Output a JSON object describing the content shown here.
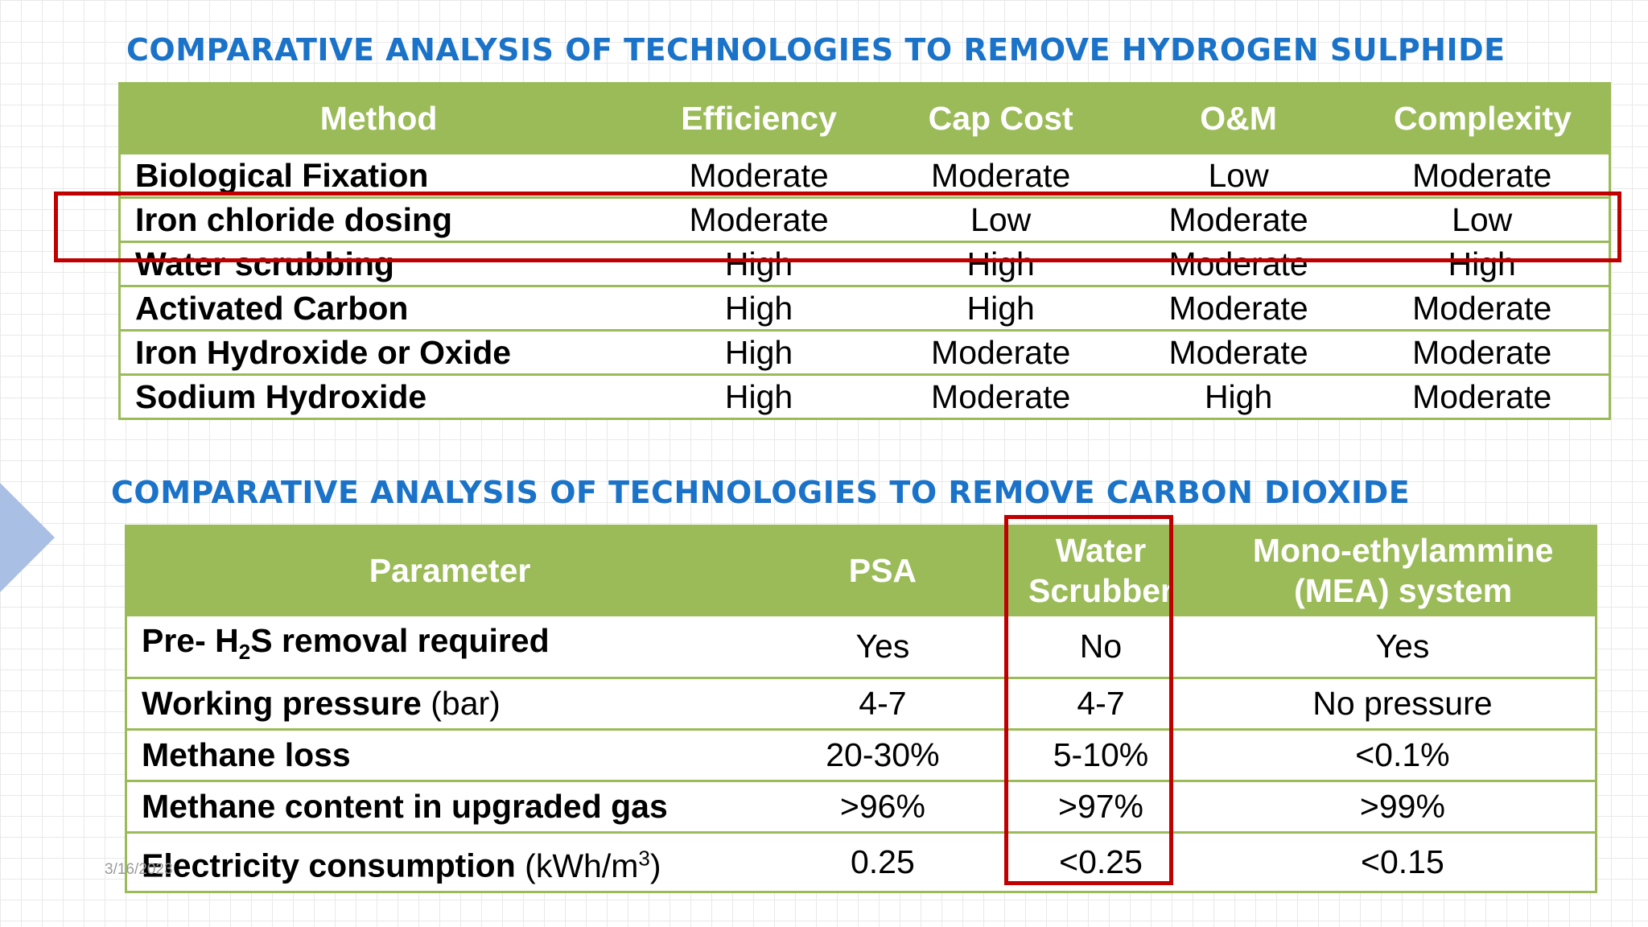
{
  "h2s": {
    "title": "COMPARATIVE ANALYSIS OF TECHNOLOGIES TO REMOVE HYDROGEN SULPHIDE",
    "headers": [
      "Method",
      "Efficiency",
      "Cap Cost",
      "O&M",
      "Complexity"
    ],
    "rows": [
      [
        "Biological Fixation",
        "Moderate",
        "Moderate",
        "Low",
        "Moderate"
      ],
      [
        "Iron chloride dosing",
        "Moderate",
        "Low",
        "Moderate",
        "Low"
      ],
      [
        "Water scrubbing",
        "High",
        "High",
        "Moderate",
        "High"
      ],
      [
        "Activated Carbon",
        "High",
        "High",
        "Moderate",
        "Moderate"
      ],
      [
        "Iron Hydroxide or Oxide",
        "High",
        "Moderate",
        "Moderate",
        "Moderate"
      ],
      [
        "Sodium Hydroxide",
        "High",
        "Moderate",
        "High",
        "Moderate"
      ]
    ],
    "highlighted_row": "Iron chloride dosing"
  },
  "co2": {
    "title": "COMPARATIVE ANALYSIS OF TECHNOLOGIES TO REMOVE CARBON DIOXIDE",
    "headers": {
      "parameter": "Parameter",
      "psa": "PSA",
      "ws_line1": "Water",
      "ws_line2": "Scrubber",
      "mea_line1": "Mono-ethylammine",
      "mea_line2": "(MEA) system"
    },
    "rows": [
      {
        "param_pre": "Pre- H",
        "param_sub": "2",
        "param_post": "S removal required",
        "unit": "",
        "psa": "Yes",
        "ws": "No",
        "mea": "Yes"
      },
      {
        "param_pre": "Working pressure",
        "unit": "(bar)",
        "psa": "4-7",
        "ws": "4-7",
        "mea": "No pressure"
      },
      {
        "param_pre": "Methane loss",
        "unit": "",
        "psa": "20-30%",
        "ws": "5-10%",
        "mea": "<0.1%"
      },
      {
        "param_pre": "Methane content in upgraded gas",
        "unit": "",
        "psa": ">96%",
        "ws": ">97%",
        "mea": ">99%"
      },
      {
        "param_pre": "Electricity consumption",
        "unit_pre": "(kWh/m",
        "unit_sup": "3",
        "unit_post": ")",
        "psa": "0.25",
        "ws": "<0.25",
        "mea": "<0.15"
      }
    ],
    "highlighted_column": "Water Scrubber"
  },
  "footer": {
    "date": "3/16/2023"
  },
  "colors": {
    "title": "#1a73c8",
    "header_bg": "#9bbb59",
    "highlight": "#c00000",
    "arrow": "#a9bfe3"
  }
}
